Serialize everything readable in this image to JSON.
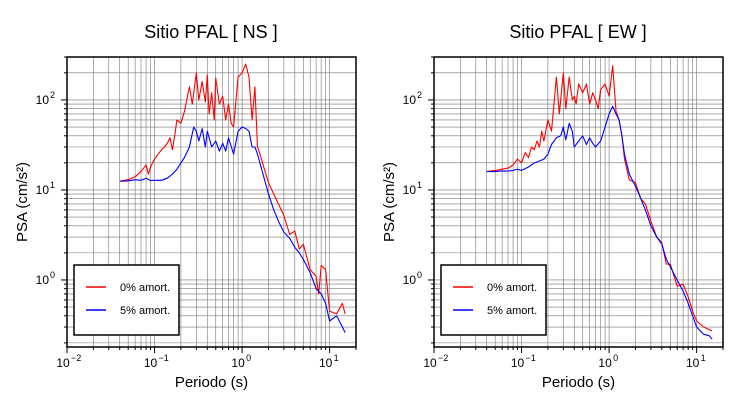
{
  "chart_data": [
    {
      "type": "line",
      "title": "Sitio PFAL [ NS ]",
      "xlabel": "Periodo (s)",
      "ylabel": "PSA (cm/s²)",
      "xscale": "log",
      "yscale": "log",
      "xlim": [
        0.01,
        20
      ],
      "ylim": [
        0.18,
        300
      ],
      "xticks": [
        {
          "base": "10",
          "exp": "−2"
        },
        {
          "base": "10",
          "exp": "−1"
        },
        {
          "base": "10",
          "exp": "0"
        },
        {
          "base": "10",
          "exp": "1"
        }
      ],
      "yticks": [
        {
          "base": "10",
          "exp": "0"
        },
        {
          "base": "10",
          "exp": "1"
        },
        {
          "base": "10",
          "exp": "2"
        }
      ],
      "grid": true,
      "legend_position": "bottom-left",
      "series": [
        {
          "name": "0% amort.",
          "color": "#ff0000",
          "x": [
            0.04,
            0.05,
            0.06,
            0.07,
            0.08,
            0.085,
            0.09,
            0.1,
            0.11,
            0.12,
            0.13,
            0.14,
            0.15,
            0.16,
            0.17,
            0.18,
            0.2,
            0.22,
            0.25,
            0.27,
            0.3,
            0.32,
            0.35,
            0.38,
            0.4,
            0.42,
            0.45,
            0.48,
            0.5,
            0.55,
            0.6,
            0.65,
            0.7,
            0.75,
            0.8,
            0.9,
            1.0,
            1.1,
            1.2,
            1.3,
            1.4,
            1.5,
            1.6,
            1.8,
            2.0,
            2.3,
            2.6,
            3.0,
            3.5,
            4.0,
            4.5,
            5.0,
            6.0,
            7.0,
            7.5,
            8.0,
            9.0,
            10.0,
            12.0,
            14.0,
            15.0
          ],
          "y": [
            12.5,
            13,
            14,
            16,
            19,
            15,
            18,
            22,
            25,
            28,
            30,
            33,
            38,
            28,
            40,
            60,
            55,
            75,
            140,
            90,
            200,
            100,
            160,
            95,
            190,
            70,
            120,
            60,
            175,
            90,
            110,
            60,
            90,
            55,
            50,
            180,
            200,
            250,
            180,
            60,
            140,
            30,
            25,
            17,
            12,
            9,
            7,
            5.2,
            3.2,
            3.5,
            2.2,
            2.5,
            1.3,
            1.1,
            0.7,
            1.45,
            1.3,
            0.45,
            0.42,
            0.55,
            0.42
          ]
        },
        {
          "name": "5% amort.",
          "color": "#0000ff",
          "x": [
            0.04,
            0.05,
            0.06,
            0.07,
            0.08,
            0.09,
            0.1,
            0.12,
            0.14,
            0.16,
            0.18,
            0.2,
            0.22,
            0.25,
            0.28,
            0.3,
            0.32,
            0.35,
            0.38,
            0.4,
            0.45,
            0.5,
            0.55,
            0.6,
            0.65,
            0.7,
            0.8,
            0.9,
            1.0,
            1.1,
            1.2,
            1.3,
            1.4,
            1.5,
            1.7,
            2.0,
            2.3,
            2.6,
            3.0,
            3.5,
            4.0,
            4.5,
            5.0,
            6.0,
            7.0,
            7.5,
            8.0,
            9.0,
            10.0,
            12.0,
            14.0,
            15.0
          ],
          "y": [
            12.5,
            12.6,
            13,
            12.8,
            13.5,
            12.7,
            12.8,
            12.8,
            13.5,
            15,
            17,
            20,
            23,
            30,
            50,
            45,
            35,
            48,
            30,
            45,
            30,
            35,
            27,
            33,
            27,
            38,
            25,
            45,
            50,
            48,
            45,
            30,
            30,
            25,
            16,
            9,
            6,
            4.5,
            3.4,
            2.9,
            2.3,
            2,
            1.7,
            1.2,
            0.8,
            0.75,
            0.7,
            0.55,
            0.35,
            0.4,
            0.3,
            0.26
          ]
        }
      ]
    },
    {
      "type": "line",
      "title": "Sitio PFAL [ EW ]",
      "xlabel": "Periodo (s)",
      "ylabel": "PSA (cm/s²)",
      "xscale": "log",
      "yscale": "log",
      "xlim": [
        0.01,
        20
      ],
      "ylim": [
        0.18,
        300
      ],
      "xticks": [
        {
          "base": "10",
          "exp": "−2"
        },
        {
          "base": "10",
          "exp": "−1"
        },
        {
          "base": "10",
          "exp": "0"
        },
        {
          "base": "10",
          "exp": "1"
        }
      ],
      "yticks": [
        {
          "base": "10",
          "exp": "0"
        },
        {
          "base": "10",
          "exp": "1"
        },
        {
          "base": "10",
          "exp": "2"
        }
      ],
      "grid": true,
      "legend_position": "bottom-left",
      "series": [
        {
          "name": "0% amort.",
          "color": "#ff0000",
          "x": [
            0.04,
            0.05,
            0.06,
            0.07,
            0.08,
            0.09,
            0.1,
            0.11,
            0.12,
            0.13,
            0.14,
            0.15,
            0.16,
            0.17,
            0.18,
            0.2,
            0.22,
            0.25,
            0.27,
            0.3,
            0.32,
            0.35,
            0.38,
            0.4,
            0.42,
            0.45,
            0.5,
            0.55,
            0.6,
            0.65,
            0.7,
            0.75,
            0.8,
            0.9,
            1.0,
            1.1,
            1.2,
            1.3,
            1.4,
            1.5,
            1.7,
            2.0,
            2.3,
            2.6,
            3.0,
            3.5,
            4.0,
            4.5,
            5.0,
            6.0,
            7.0,
            8.0,
            9.0,
            10.0,
            12.0,
            14.0,
            15.0
          ],
          "y": [
            16,
            16.5,
            17,
            17.5,
            19,
            22,
            20,
            26,
            23,
            30,
            28,
            35,
            30,
            45,
            35,
            60,
            45,
            180,
            70,
            200,
            80,
            180,
            100,
            110,
            90,
            150,
            120,
            150,
            90,
            120,
            100,
            80,
            130,
            150,
            110,
            240,
            75,
            60,
            40,
            22,
            13,
            12,
            8,
            7,
            4.5,
            3,
            2.6,
            1.5,
            1.5,
            0.85,
            0.9,
            0.65,
            0.45,
            0.35,
            0.3,
            0.28,
            0.27
          ]
        },
        {
          "name": "5% amort.",
          "color": "#0000ff",
          "x": [
            0.04,
            0.05,
            0.06,
            0.07,
            0.08,
            0.09,
            0.1,
            0.12,
            0.14,
            0.16,
            0.18,
            0.2,
            0.22,
            0.25,
            0.28,
            0.3,
            0.32,
            0.35,
            0.38,
            0.4,
            0.45,
            0.5,
            0.55,
            0.6,
            0.65,
            0.7,
            0.8,
            0.9,
            1.0,
            1.1,
            1.2,
            1.3,
            1.4,
            1.5,
            1.7,
            2.0,
            2.3,
            2.6,
            3.0,
            3.5,
            4.0,
            4.5,
            5.0,
            6.0,
            7.0,
            8.0,
            9.0,
            10.0,
            12.0,
            14.0,
            15.0
          ],
          "y": [
            16,
            16,
            16.3,
            16.2,
            16.5,
            17,
            16.5,
            18,
            20,
            21,
            22,
            25,
            32,
            38,
            40,
            50,
            36,
            55,
            45,
            30,
            35,
            40,
            32,
            38,
            33,
            30,
            35,
            50,
            70,
            85,
            70,
            60,
            40,
            25,
            15,
            11,
            8,
            6,
            4,
            3,
            2.5,
            1.7,
            1.4,
            1,
            0.75,
            0.55,
            0.4,
            0.3,
            0.25,
            0.24,
            0.22
          ]
        }
      ]
    }
  ]
}
